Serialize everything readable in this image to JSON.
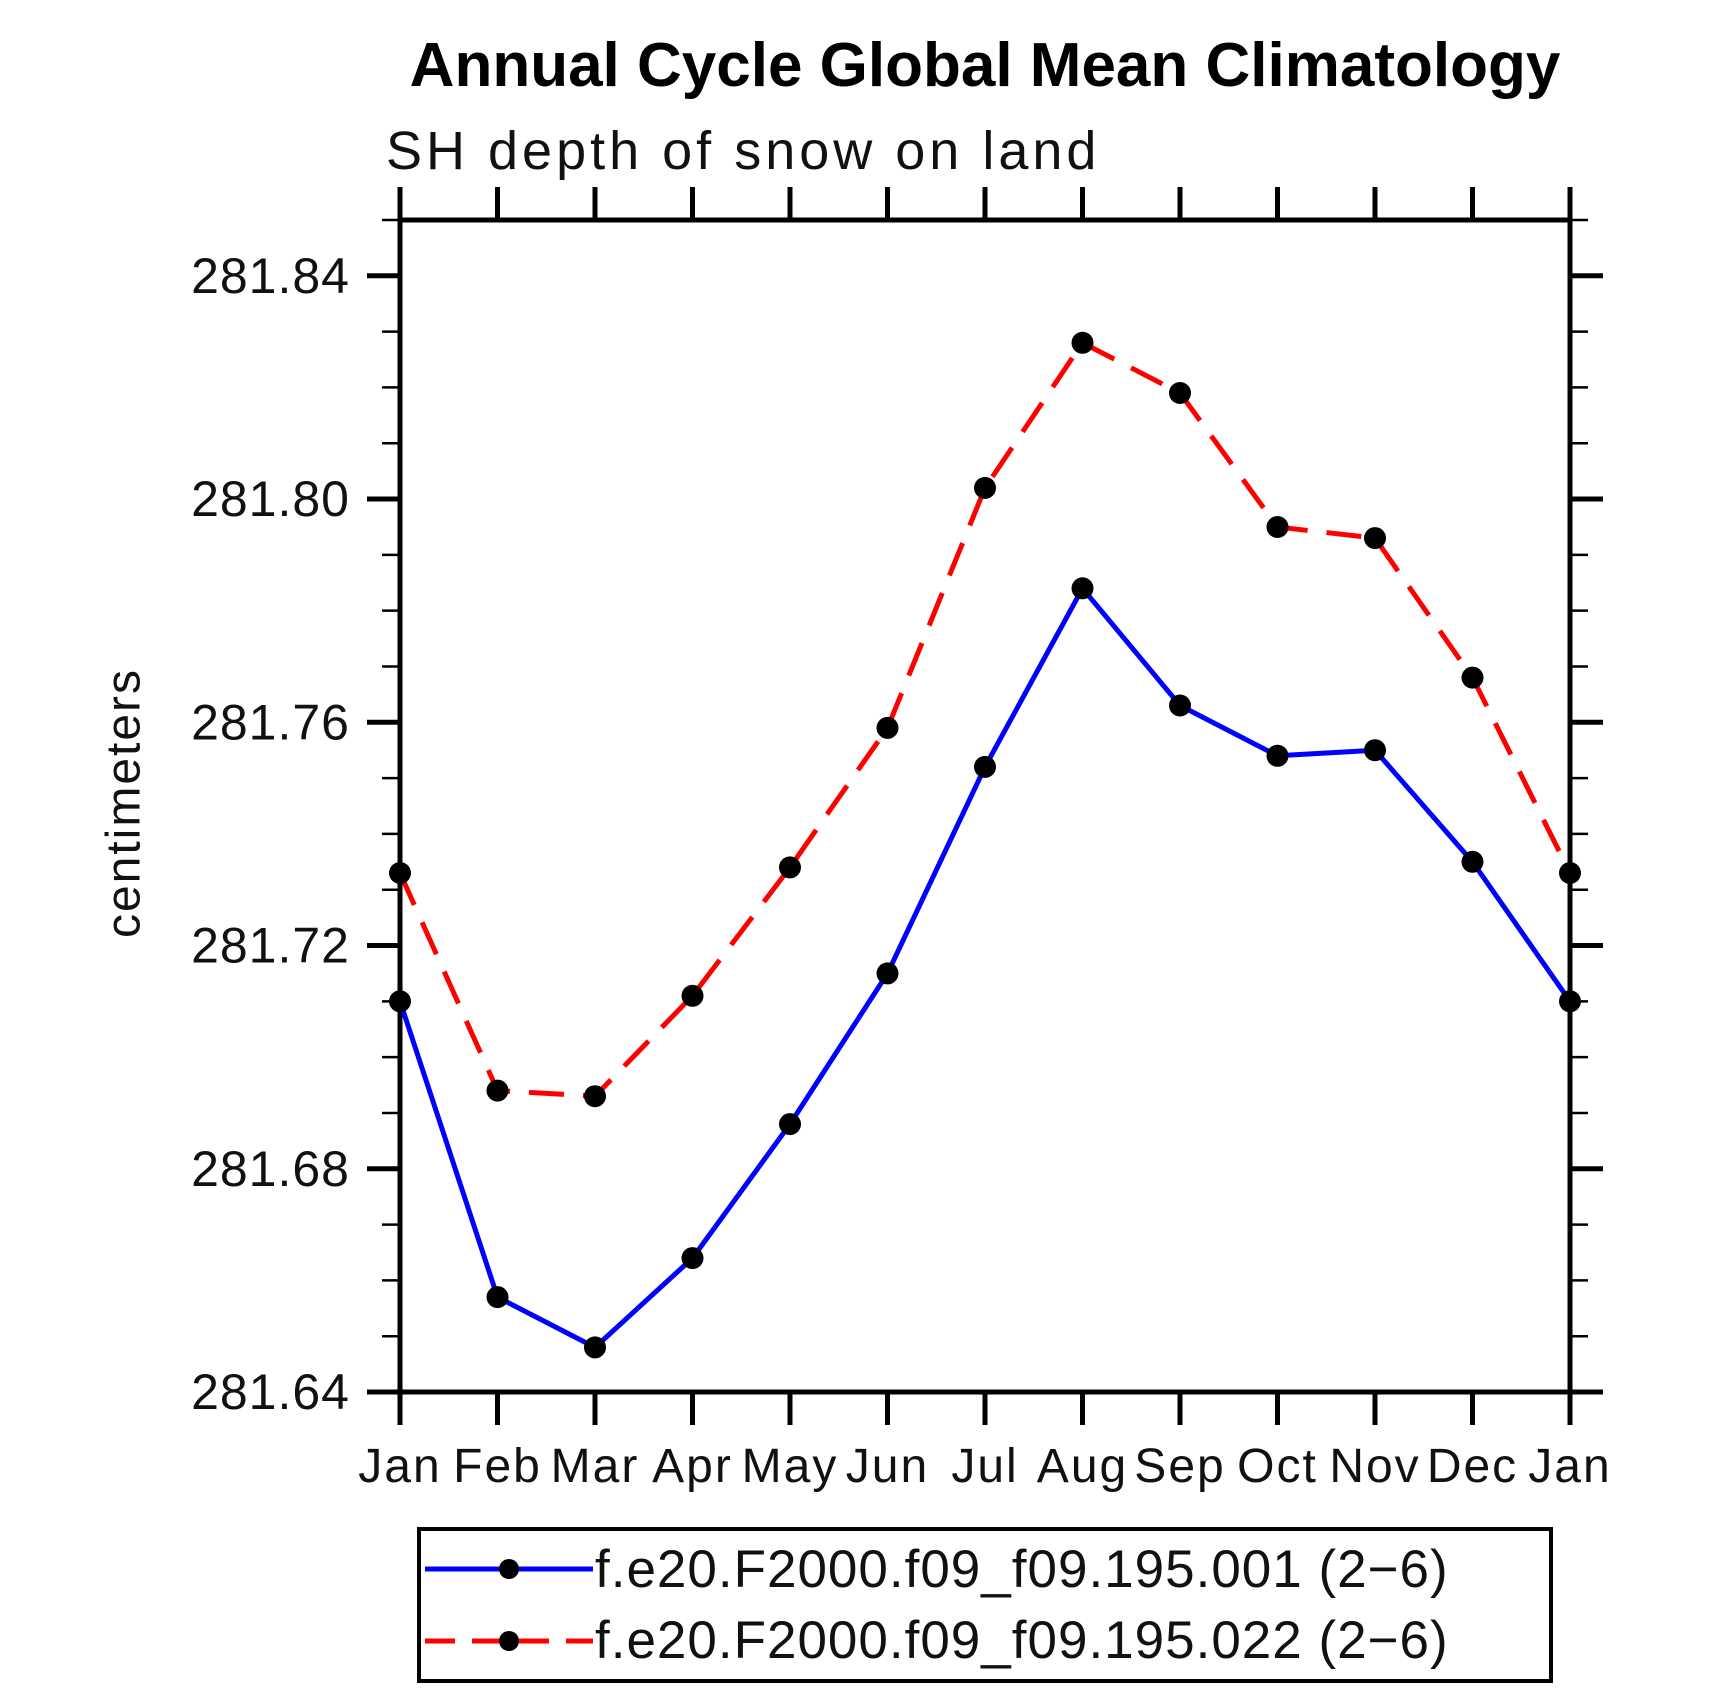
{
  "title": "Annual Cycle Global Mean Climatology",
  "subtitle": "SH depth of snow on land",
  "ylabel": "centimeters",
  "chart_data": {
    "type": "line",
    "categories": [
      "Jan",
      "Feb",
      "Mar",
      "Apr",
      "May",
      "Jun",
      "Jul",
      "Aug",
      "Sep",
      "Oct",
      "Nov",
      "Dec",
      "Jan"
    ],
    "series": [
      {
        "name": "f.e20.F2000.f09_f09.195.001 (2−6)",
        "color": "#0000ff",
        "style": "solid",
        "marker": "circle",
        "marker_color": "#000000",
        "values": [
          281.71,
          281.657,
          281.648,
          281.664,
          281.688,
          281.715,
          281.752,
          281.784,
          281.763,
          281.754,
          281.755,
          281.735,
          281.71
        ]
      },
      {
        "name": "f.e20.F2000.f09_f09.195.022 (2−6)",
        "color": "#ff0000",
        "style": "dashed",
        "marker": "circle",
        "marker_color": "#000000",
        "values": [
          281.733,
          281.694,
          281.693,
          281.711,
          281.734,
          281.759,
          281.802,
          281.828,
          281.819,
          281.795,
          281.793,
          281.768,
          281.733
        ]
      }
    ],
    "ylim": [
      281.64,
      281.85
    ],
    "ytick_major": [
      281.64,
      281.68,
      281.72,
      281.76,
      281.8,
      281.84
    ],
    "ytick_labels": [
      "281.64",
      "281.68",
      "281.72",
      "281.76",
      "281.80",
      "281.84"
    ],
    "ytick_minor_step": 0.01,
    "xlabel": "",
    "grid": false,
    "legend_position": "bottom",
    "frame_color": "#000000",
    "background_color": "#ffffff"
  }
}
